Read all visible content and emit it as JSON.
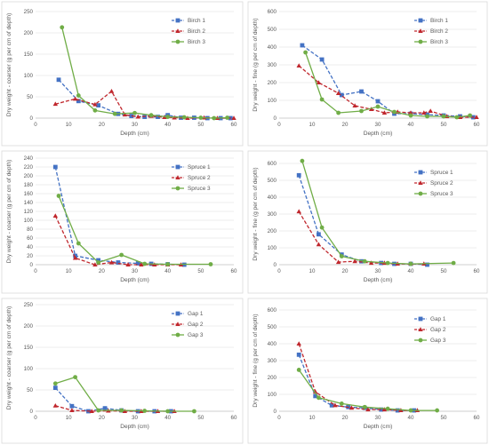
{
  "colors": {
    "series1": "#4472c4",
    "series2": "#c0272d",
    "series3": "#70ad47"
  },
  "chart_data": [
    {
      "type": "line",
      "xlabel": "Depth (cm)",
      "ylabel": "Dry weight - coarser (g per cm of depth)",
      "xlim": [
        0,
        60
      ],
      "xticks": [
        0,
        10,
        20,
        30,
        40,
        50,
        60
      ],
      "ylim": [
        0,
        250
      ],
      "yticks": [
        0,
        50,
        100,
        150,
        200,
        250
      ],
      "grid": true,
      "legend": "top-right",
      "series": [
        {
          "name": "Birch 1",
          "x": [
            7,
            13,
            19,
            25,
            29,
            33,
            37,
            40,
            44,
            48,
            52,
            56,
            59
          ],
          "y": [
            90,
            40,
            30,
            10,
            5,
            3,
            3,
            7,
            1,
            1,
            0,
            0,
            0
          ]
        },
        {
          "name": "Birch 2",
          "x": [
            6,
            12,
            18,
            23,
            27,
            31,
            35,
            39,
            42,
            46,
            51,
            55,
            60
          ],
          "y": [
            33,
            45,
            32,
            63,
            8,
            3,
            5,
            2,
            1,
            0,
            1,
            0,
            0
          ]
        },
        {
          "name": "Birch 3",
          "x": [
            8,
            13,
            18,
            24,
            30,
            35,
            40,
            45,
            50,
            54,
            58
          ],
          "y": [
            213,
            53,
            18,
            10,
            12,
            7,
            3,
            2,
            1,
            0,
            1
          ]
        }
      ]
    },
    {
      "type": "line",
      "xlabel": "Depth (cm)",
      "ylabel": "Dry weight - fine (g per cm of depth)",
      "xlim": [
        0,
        60
      ],
      "xticks": [
        0,
        10,
        20,
        30,
        40,
        50,
        60
      ],
      "ylim": [
        0,
        600
      ],
      "yticks": [
        0,
        100,
        200,
        300,
        400,
        500,
        600
      ],
      "grid": true,
      "legend": "top-right",
      "series": [
        {
          "name": "Birch 1",
          "x": [
            7,
            13,
            19,
            25,
            30,
            35,
            40,
            45,
            50,
            55,
            59
          ],
          "y": [
            410,
            330,
            130,
            150,
            95,
            25,
            25,
            20,
            15,
            10,
            5
          ]
        },
        {
          "name": "Birch 2",
          "x": [
            6,
            12,
            18,
            23,
            28,
            32,
            36,
            40,
            44,
            46,
            51,
            55,
            60
          ],
          "y": [
            295,
            200,
            140,
            70,
            50,
            30,
            35,
            30,
            30,
            40,
            10,
            5,
            5
          ]
        },
        {
          "name": "Birch 3",
          "x": [
            8,
            13,
            18,
            25,
            30,
            35,
            40,
            45,
            50,
            54,
            58
          ],
          "y": [
            370,
            105,
            30,
            40,
            65,
            35,
            15,
            10,
            10,
            5,
            15
          ]
        }
      ]
    },
    {
      "type": "line",
      "xlabel": "Depth (cm)",
      "ylabel": "Dry weight - coarser (g per cm of depth)",
      "xlim": [
        0,
        60
      ],
      "xticks": [
        0,
        10,
        20,
        30,
        40,
        50,
        60
      ],
      "ylim": [
        0,
        240
      ],
      "yticks": [
        0,
        20,
        40,
        60,
        80,
        100,
        120,
        140,
        160,
        180,
        200,
        220,
        240
      ],
      "grid": true,
      "legend": "top-right",
      "series": [
        {
          "name": "Spruce 1",
          "x": [
            6,
            12,
            19,
            25,
            31,
            35,
            40,
            45
          ],
          "y": [
            220,
            20,
            10,
            5,
            3,
            2,
            1,
            0
          ]
        },
        {
          "name": "Spruce 2",
          "x": [
            6,
            12,
            18,
            23,
            28,
            32,
            36,
            40,
            44
          ],
          "y": [
            110,
            15,
            0,
            5,
            0,
            0,
            0,
            0,
            0
          ]
        },
        {
          "name": "Spruce 3",
          "x": [
            7,
            13,
            19,
            26,
            33,
            40,
            53
          ],
          "y": [
            155,
            48,
            5,
            22,
            2,
            1,
            1
          ]
        }
      ]
    },
    {
      "type": "line",
      "xlabel": "Depth (cm)",
      "ylabel": "Dry weight - fine (g per cm of depth)",
      "xlim": [
        0,
        60
      ],
      "xticks": [
        0,
        10,
        20,
        30,
        40,
        50,
        60
      ],
      "ylim": [
        0,
        600
      ],
      "yticks": [
        0,
        100,
        200,
        300,
        400,
        500,
        600
      ],
      "grid": true,
      "legend": "top-right",
      "series": [
        {
          "name": "Spruce 1",
          "x": [
            6,
            12,
            19,
            25,
            31,
            35,
            40,
            45
          ],
          "y": [
            530,
            180,
            60,
            20,
            10,
            5,
            5,
            0
          ]
        },
        {
          "name": "Spruce 2",
          "x": [
            6,
            12,
            18,
            23,
            28,
            32,
            36,
            40,
            44
          ],
          "y": [
            315,
            120,
            15,
            20,
            10,
            10,
            5,
            5,
            5
          ]
        },
        {
          "name": "Spruce 3",
          "x": [
            7,
            13,
            19,
            26,
            33,
            40,
            53
          ],
          "y": [
            615,
            220,
            50,
            20,
            10,
            5,
            10
          ]
        }
      ]
    },
    {
      "type": "line",
      "xlabel": "Depth (cm)",
      "ylabel": "Dry weight - coarser (g per cm of depth)",
      "xlim": [
        0,
        60
      ],
      "xticks": [
        0,
        10,
        20,
        30,
        40,
        50,
        60
      ],
      "ylim": [
        0,
        250
      ],
      "yticks": [
        0,
        50,
        100,
        150,
        200,
        250
      ],
      "grid": true,
      "legend": "top-right",
      "series": [
        {
          "name": "Gap 1",
          "x": [
            6,
            11,
            16,
            21,
            26,
            31,
            36,
            41
          ],
          "y": [
            55,
            12,
            0,
            7,
            2,
            0,
            0,
            0
          ]
        },
        {
          "name": "Gap 2",
          "x": [
            6,
            11,
            17,
            22,
            27,
            32,
            37,
            42
          ],
          "y": [
            13,
            2,
            0,
            1,
            0,
            0,
            0,
            0
          ]
        },
        {
          "name": "Gap 3",
          "x": [
            6,
            12,
            19,
            26,
            33,
            40,
            48
          ],
          "y": [
            65,
            80,
            2,
            2,
            1,
            0,
            0
          ]
        }
      ]
    },
    {
      "type": "line",
      "xlabel": "Depth (cm)",
      "ylabel": "Dry weight - fine (g per cm of depth)",
      "xlim": [
        0,
        60
      ],
      "xticks": [
        0,
        10,
        20,
        30,
        40,
        50,
        60
      ],
      "ylim": [
        0,
        600
      ],
      "yticks": [
        0,
        100,
        200,
        300,
        400,
        500,
        600
      ],
      "grid": true,
      "legend": "top-right",
      "series": [
        {
          "name": "Gap 1",
          "x": [
            6,
            11,
            16,
            21,
            26,
            31,
            36,
            41
          ],
          "y": [
            335,
            90,
            35,
            25,
            20,
            10,
            5,
            5
          ]
        },
        {
          "name": "Gap 2",
          "x": [
            6,
            11,
            17,
            22,
            27,
            32,
            37,
            42
          ],
          "y": [
            400,
            115,
            35,
            20,
            10,
            10,
            5,
            5
          ]
        },
        {
          "name": "Gap 3",
          "x": [
            6,
            12,
            19,
            26,
            33,
            40,
            48
          ],
          "y": [
            245,
            80,
            45,
            25,
            15,
            5,
            5
          ]
        }
      ]
    }
  ]
}
